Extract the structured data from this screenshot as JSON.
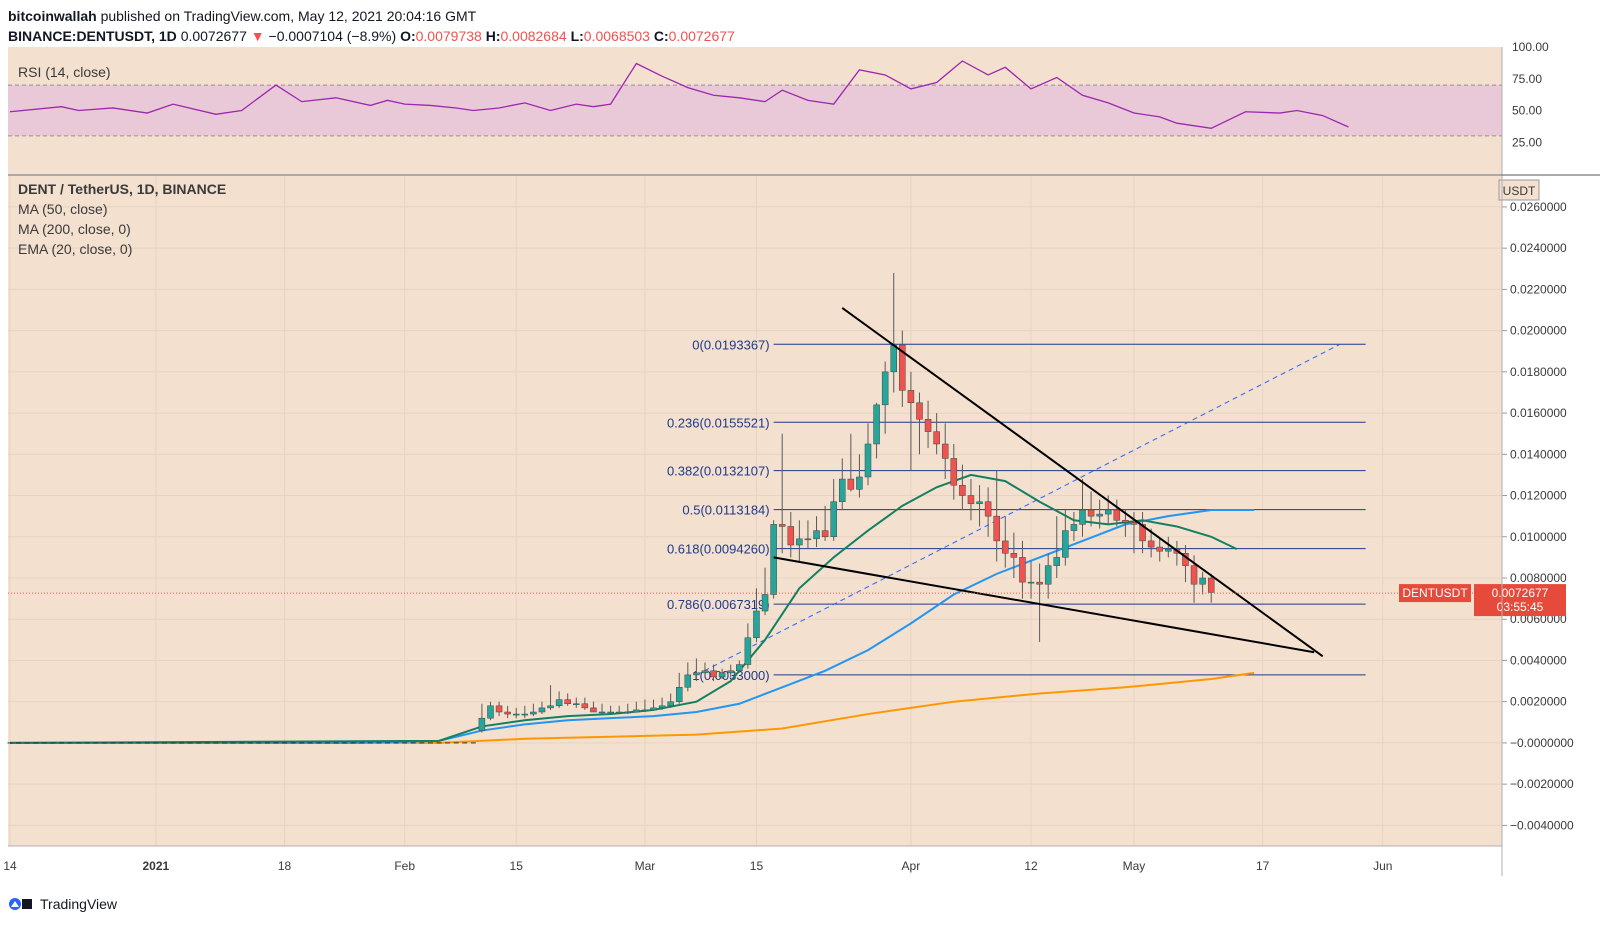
{
  "header": {
    "author": "bitcoinwallah",
    "published": " published on TradingView.com, May 12, 2021 20:04:16 GMT",
    "symbol": "BINANCE:DENTUSDT, 1D",
    "last": "0.0072677",
    "change": "−0.0007104 (−8.9%)",
    "o_label": "O:",
    "o": "0.0079738",
    "h_label": "H:",
    "h": "0.0082684",
    "l_label": "L:",
    "l": "0.0068503",
    "c_label": "C:",
    "c": "0.0072677"
  },
  "footer": {
    "brand": "TradingView"
  },
  "colors": {
    "background": "#f3e0cf",
    "up": "#26a69a",
    "down": "#ef5350",
    "rsi": "#9c27b0",
    "ma50": "#2196f3",
    "ma200": "#ff9800",
    "ema20": "#138062",
    "fib": "#1e3a8a",
    "trend": "#000000"
  },
  "chart_data": [
    {
      "type": "line",
      "title": "RSI (14, close)",
      "ylim": [
        0,
        100
      ],
      "ticks": [
        "100.00",
        "75.00",
        "50.00",
        "25.00"
      ],
      "band": [
        30,
        70
      ],
      "x_days": [
        0,
        6,
        8,
        12,
        16,
        19,
        24,
        27,
        31,
        34,
        38,
        42,
        44,
        46,
        49,
        52,
        54,
        57,
        60,
        63,
        66,
        68,
        70,
        73,
        76,
        79,
        82,
        85,
        88,
        90,
        93,
        96,
        99,
        102,
        105,
        108,
        111,
        114,
        116,
        119,
        122,
        125,
        128,
        131,
        134,
        136,
        140,
        144,
        148,
        150,
        153,
        156
      ],
      "values": [
        49,
        53,
        50,
        52,
        48,
        55,
        47,
        50,
        70,
        57,
        60,
        54,
        58,
        55,
        54,
        52,
        50,
        52,
        56,
        50,
        55,
        53,
        55,
        87,
        77,
        68,
        62,
        60,
        57,
        66,
        58,
        55,
        82,
        78,
        67,
        72,
        89,
        78,
        84,
        67,
        76,
        62,
        56,
        48,
        45,
        40,
        36,
        49,
        48,
        50,
        46,
        37
      ]
    },
    {
      "type": "candlestick",
      "title": "DENT / TetherUS, 1D, BINANCE",
      "indicators": [
        "MA (50, close)",
        "MA (200, close, 0)",
        "EMA (20, close, 0)"
      ],
      "ylabel": "USDT",
      "ylim": [
        -0.005,
        0.0275
      ],
      "y_ticks": [
        "0.0260000",
        "0.0240000",
        "0.0220000",
        "0.0200000",
        "0.0180000",
        "0.0160000",
        "0.0140000",
        "0.0120000",
        "0.0100000",
        "0.0080000",
        "0.0060000",
        "0.0040000",
        "0.0020000",
        "−0.0000000",
        "−0.0020000",
        "−0.0040000"
      ],
      "x_ticks": [
        "14",
        "2021",
        "18",
        "Feb",
        "15",
        "Mar",
        "15",
        "Apr",
        "12",
        "May",
        "17",
        "Jun"
      ],
      "x_tick_days": [
        0,
        17,
        32,
        46,
        59,
        74,
        87,
        105,
        119,
        131,
        146,
        160
      ],
      "last_label": "DENTUSDT",
      "last_value": "0.0072677",
      "countdown": "03:55:45",
      "candles": {
        "days": [
          55,
          56,
          57,
          58,
          59,
          60,
          61,
          62,
          63,
          64,
          65,
          66,
          67,
          68,
          69,
          70,
          71,
          72,
          73,
          74,
          75,
          76,
          77,
          78,
          79,
          80,
          81,
          82,
          83,
          84,
          85,
          86,
          87,
          88,
          89,
          90,
          91,
          92,
          93,
          94,
          95,
          96,
          97,
          98,
          99,
          100,
          101,
          102,
          103,
          104,
          105,
          106,
          107,
          108,
          109,
          110,
          111,
          112,
          113,
          114,
          115,
          116,
          117,
          118,
          119,
          120,
          121,
          122,
          123,
          124,
          125,
          126,
          127,
          128,
          129,
          130,
          131,
          132,
          133,
          134,
          135,
          136,
          137,
          138,
          139,
          140
        ],
        "open": [
          0.0006,
          0.0012,
          0.0018,
          0.0015,
          0.0014,
          0.0014,
          0.0014,
          0.0015,
          0.0017,
          0.0018,
          0.0021,
          0.0019,
          0.0019,
          0.0017,
          0.0015,
          0.0015,
          0.0015,
          0.0015,
          0.0015,
          0.0016,
          0.0016,
          0.0017,
          0.0018,
          0.002,
          0.0027,
          0.0033,
          0.0034,
          0.0035,
          0.0032,
          0.0034,
          0.0035,
          0.0038,
          0.0051,
          0.0064,
          0.0072,
          0.0106,
          0.0105,
          0.0096,
          0.0099,
          0.0099,
          0.0103,
          0.01,
          0.0117,
          0.0128,
          0.0123,
          0.0129,
          0.0145,
          0.0164,
          0.018,
          0.0193,
          0.0171,
          0.0165,
          0.0157,
          0.0151,
          0.0145,
          0.0138,
          0.0125,
          0.012,
          0.0116,
          0.0117,
          0.011,
          0.0098,
          0.0092,
          0.009,
          0.0078,
          0.0078,
          0.0077,
          0.0086,
          0.009,
          0.0103,
          0.0106,
          0.0113,
          0.011,
          0.0111,
          0.0113,
          0.0108,
          0.0107,
          0.0106,
          0.0098,
          0.0095,
          0.0093,
          0.0094,
          0.0092,
          0.0086,
          0.0077,
          0.008
        ],
        "high": [
          0.0019,
          0.002,
          0.002,
          0.0018,
          0.0017,
          0.0018,
          0.0019,
          0.002,
          0.0028,
          0.0025,
          0.0024,
          0.0022,
          0.0022,
          0.002,
          0.0019,
          0.0018,
          0.0018,
          0.0019,
          0.002,
          0.0021,
          0.0021,
          0.0022,
          0.0024,
          0.0034,
          0.0039,
          0.0041,
          0.0039,
          0.0038,
          0.0036,
          0.0038,
          0.004,
          0.0058,
          0.0075,
          0.0085,
          0.0108,
          0.015,
          0.0112,
          0.0108,
          0.0108,
          0.011,
          0.0115,
          0.0128,
          0.0138,
          0.015,
          0.014,
          0.0155,
          0.0165,
          0.0185,
          0.0228,
          0.02,
          0.018,
          0.017,
          0.0166,
          0.016,
          0.0155,
          0.0145,
          0.0135,
          0.0128,
          0.0125,
          0.0124,
          0.0132,
          0.011,
          0.0102,
          0.0098,
          0.0088,
          0.0087,
          0.0092,
          0.011,
          0.0113,
          0.0112,
          0.0128,
          0.0122,
          0.0118,
          0.012,
          0.0118,
          0.0113,
          0.0112,
          0.0112,
          0.0104,
          0.0099,
          0.01,
          0.0098,
          0.0096,
          0.0091,
          0.0083,
          0.0082
        ],
        "low": [
          0.0005,
          0.0011,
          0.0013,
          0.0012,
          0.0012,
          0.0012,
          0.0013,
          0.0014,
          0.0016,
          0.0017,
          0.0018,
          0.0017,
          0.0016,
          0.0015,
          0.0014,
          0.0014,
          0.0014,
          0.0014,
          0.0015,
          0.0015,
          0.0016,
          0.0016,
          0.0017,
          0.0019,
          0.0025,
          0.003,
          0.0032,
          0.003,
          0.0031,
          0.0032,
          0.0034,
          0.0036,
          0.0049,
          0.0062,
          0.007,
          0.0092,
          0.009,
          0.0088,
          0.0094,
          0.0095,
          0.0098,
          0.0098,
          0.0113,
          0.0122,
          0.0119,
          0.0125,
          0.0138,
          0.015,
          0.017,
          0.0163,
          0.0132,
          0.014,
          0.0143,
          0.014,
          0.0128,
          0.0118,
          0.0113,
          0.0108,
          0.0105,
          0.01,
          0.0088,
          0.0085,
          0.008,
          0.007,
          0.007,
          0.0049,
          0.007,
          0.008,
          0.0086,
          0.0098,
          0.01,
          0.0105,
          0.0104,
          0.0106,
          0.0105,
          0.01,
          0.0092,
          0.0092,
          0.009,
          0.0088,
          0.009,
          0.0086,
          0.0078,
          0.0068,
          0.0072,
          0.0068
        ],
        "close": [
          0.0012,
          0.0018,
          0.0015,
          0.0014,
          0.0014,
          0.0014,
          0.0015,
          0.0017,
          0.0018,
          0.0021,
          0.0019,
          0.0019,
          0.0017,
          0.0015,
          0.0015,
          0.0015,
          0.0015,
          0.0015,
          0.0016,
          0.0016,
          0.0017,
          0.0018,
          0.002,
          0.0027,
          0.0033,
          0.0034,
          0.0035,
          0.0032,
          0.0034,
          0.0035,
          0.0038,
          0.0051,
          0.0064,
          0.0072,
          0.0106,
          0.0105,
          0.0096,
          0.0099,
          0.0099,
          0.0103,
          0.01,
          0.0117,
          0.0128,
          0.0123,
          0.0129,
          0.0145,
          0.0164,
          0.018,
          0.0193,
          0.0171,
          0.0165,
          0.0157,
          0.0151,
          0.0145,
          0.0138,
          0.0125,
          0.012,
          0.0116,
          0.0117,
          0.011,
          0.0098,
          0.0092,
          0.009,
          0.0078,
          0.0078,
          0.0077,
          0.0086,
          0.009,
          0.0103,
          0.0106,
          0.0113,
          0.011,
          0.0111,
          0.0113,
          0.0108,
          0.0107,
          0.0106,
          0.0098,
          0.0095,
          0.0093,
          0.0094,
          0.0092,
          0.0086,
          0.0077,
          0.008,
          0.0073
        ]
      },
      "ma50": {
        "days": [
          0,
          40,
          50,
          55,
          60,
          65,
          70,
          75,
          80,
          85,
          90,
          95,
          100,
          105,
          110,
          115,
          120,
          125,
          130,
          135,
          140,
          145
        ],
        "values": [
          0,
          0,
          0.0001,
          0.0006,
          0.0009,
          0.0011,
          0.0012,
          0.0013,
          0.0015,
          0.0019,
          0.0027,
          0.0035,
          0.0045,
          0.0058,
          0.0072,
          0.0082,
          0.009,
          0.0098,
          0.0106,
          0.011,
          0.0113,
          0.0113
        ]
      },
      "ma200": {
        "days": [
          0,
          50,
          60,
          70,
          80,
          90,
          100,
          110,
          120,
          130,
          140,
          145
        ],
        "values": [
          0,
          0,
          0.0002,
          0.0003,
          0.0004,
          0.0007,
          0.0014,
          0.002,
          0.0024,
          0.0027,
          0.0031,
          0.0034
        ]
      },
      "ema20": {
        "days": [
          0,
          50,
          55,
          60,
          65,
          70,
          75,
          80,
          84,
          88,
          92,
          96,
          100,
          104,
          108,
          112,
          116,
          120,
          124,
          128,
          132,
          136,
          140,
          143
        ],
        "values": [
          0,
          0.0001,
          0.0008,
          0.0011,
          0.0013,
          0.0014,
          0.0016,
          0.002,
          0.003,
          0.005,
          0.0075,
          0.009,
          0.0103,
          0.0115,
          0.0124,
          0.013,
          0.0127,
          0.0117,
          0.0108,
          0.0106,
          0.0108,
          0.0105,
          0.01,
          0.0094
        ]
      },
      "fib_levels": [
        {
          "label": "0(0.0193367)",
          "value": 0.0193367
        },
        {
          "label": "0.236(0.0155521)",
          "value": 0.0155521
        },
        {
          "label": "0.382(0.0132107)",
          "value": 0.0132107
        },
        {
          "label": "0.5(0.0113184)",
          "value": 0.0113184
        },
        {
          "label": "0.618(0.0094260)",
          "value": 0.009426
        },
        {
          "label": "0.786(0.0067319)",
          "value": 0.0067319
        },
        {
          "label": "1(0.0033000)",
          "value": 0.0033
        }
      ],
      "trendlines": [
        {
          "from": [
            97,
            0.0211
          ],
          "to": [
            153,
            0.0042
          ]
        },
        {
          "from": [
            89,
            0.009
          ],
          "to": [
            152,
            0.0044
          ]
        }
      ],
      "fib_diagonal": {
        "from": [
          80,
          0.0033
        ],
        "to": [
          155,
          0.0193367
        ]
      }
    }
  ]
}
